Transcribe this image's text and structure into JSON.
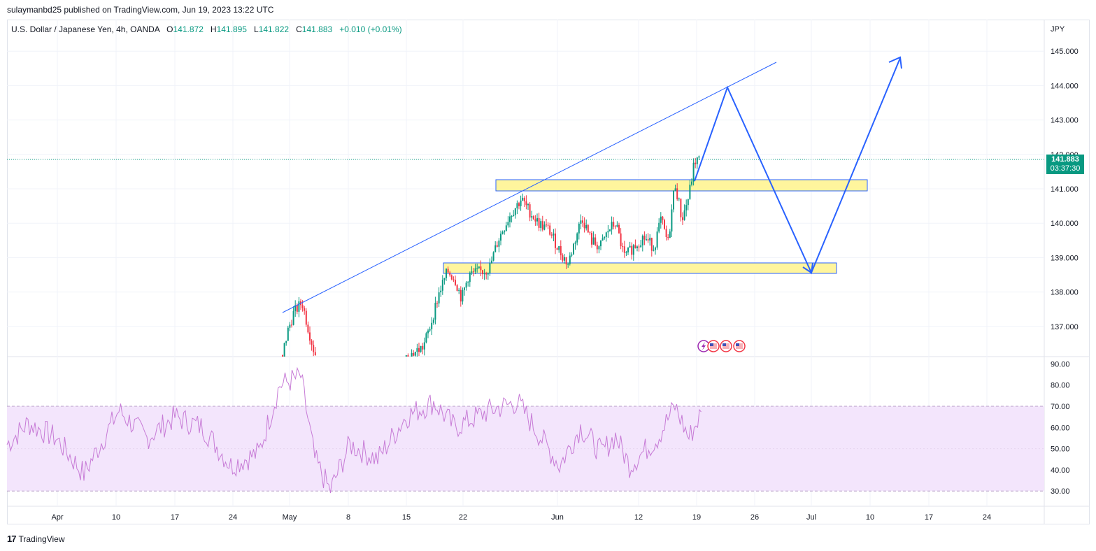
{
  "header": {
    "publisher_line": "sulaymanbd25 published on TradingView.com, Jun 19, 2023 13:22 UTC"
  },
  "legend": {
    "symbol": "U.S. Dollar / Japanese Yen, 4h, OANDA",
    "open_label": "O",
    "open": "141.872",
    "high_label": "H",
    "high": "141.895",
    "low_label": "L",
    "low": "141.822",
    "close_label": "C",
    "close": "141.883",
    "change": "+0.010 (+0.01%)"
  },
  "price_axis": {
    "currency": "JPY",
    "ticks": [
      "145.000",
      "144.000",
      "143.000",
      "142.000",
      "141.000",
      "140.000",
      "139.000",
      "138.000",
      "137.000"
    ],
    "last_price": "141.883",
    "countdown": "03:37:30"
  },
  "rsi_axis": {
    "ticks": [
      "90.00",
      "80.00",
      "70.00",
      "60.00",
      "50.00",
      "40.00",
      "30.00"
    ]
  },
  "time_axis": {
    "ticks": [
      "Apr",
      "10",
      "17",
      "24",
      "May",
      "8",
      "15",
      "22",
      "Jun",
      "12",
      "19",
      "26",
      "Jul",
      "10",
      "17",
      "24"
    ]
  },
  "colors": {
    "up": "#089981",
    "down": "#f23645",
    "drawing": "#2962ff",
    "zone_fill": "#fff59d",
    "rsi_line": "#c77bd6",
    "rsi_band": "#f3e5fc"
  },
  "footer": {
    "brand": "TradingView"
  }
}
